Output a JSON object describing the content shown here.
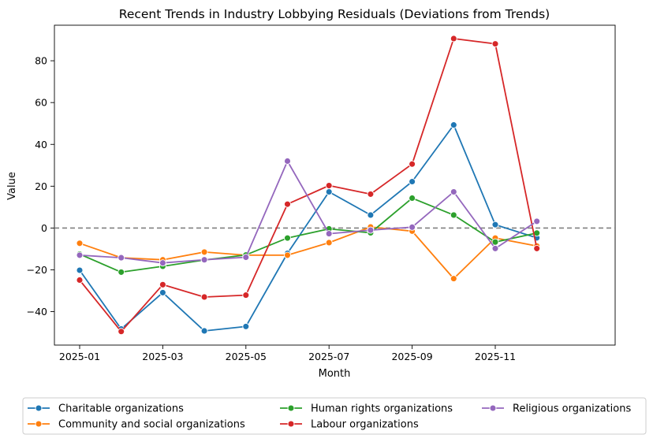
{
  "chart_data": {
    "type": "line",
    "title": "Recent Trends in Industry Lobbying Residuals (Deviations from Trends)",
    "xlabel": "Month",
    "ylabel": "Value",
    "x": [
      "2025-01",
      "2025-02",
      "2025-03",
      "2025-04",
      "2025-05",
      "2025-06",
      "2025-07",
      "2025-08",
      "2025-09",
      "2025-10",
      "2025-11",
      "2025-12"
    ],
    "x_tick_labels": [
      "2025-01",
      "2025-03",
      "2025-05",
      "2025-07",
      "2025-09",
      "2025-11"
    ],
    "y_ticks": [
      -40,
      -20,
      0,
      20,
      40,
      60,
      80
    ],
    "ylim": [
      -56,
      97
    ],
    "reference_line": {
      "y": 0,
      "style": "dashed",
      "color": "#808080"
    },
    "grid": false,
    "legend_position": "bottom, outside plot",
    "series": [
      {
        "name": "Charitable organizations",
        "color": "#1f77b4",
        "values": [
          -20.2,
          -48.3,
          -30.9,
          -49.2,
          -47.1,
          -12.1,
          17.3,
          6.2,
          22.2,
          49.3,
          1.6,
          -4.7
        ]
      },
      {
        "name": "Community and social organizations",
        "color": "#ff7f0e",
        "values": [
          -7.3,
          -14.2,
          -15.2,
          -11.5,
          -13.0,
          -13.0,
          -7.0,
          0.5,
          -1.5,
          -24.2,
          -4.8,
          -8.6
        ]
      },
      {
        "name": "Human rights organizations",
        "color": "#2ca02c",
        "values": [
          -12.5,
          -21.1,
          -18.3,
          -15.3,
          -12.9,
          -4.8,
          -0.4,
          -2.3,
          14.3,
          6.2,
          -6.7,
          -2.4
        ]
      },
      {
        "name": "Labour organizations",
        "color": "#d62728",
        "values": [
          -24.9,
          -49.5,
          -27.1,
          -33.0,
          -32.1,
          11.4,
          20.3,
          16.2,
          30.6,
          90.6,
          88.1,
          -9.8
        ]
      },
      {
        "name": "Religious organizations",
        "color": "#9467bd",
        "values": [
          -13.0,
          -14.2,
          -16.7,
          -15.2,
          -14.0,
          32.0,
          -2.7,
          -1.0,
          0.4,
          17.3,
          -9.8,
          3.2
        ]
      }
    ]
  }
}
